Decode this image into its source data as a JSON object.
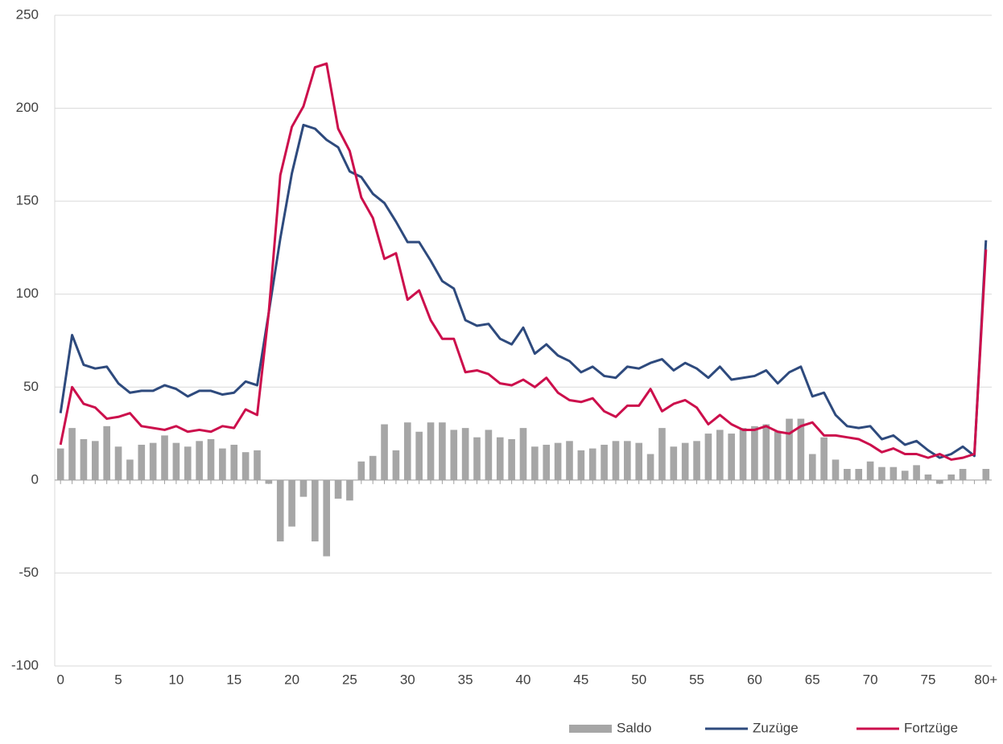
{
  "chart_data": {
    "type": "bar-line",
    "categories": [
      "0",
      null,
      null,
      null,
      null,
      "5",
      null,
      null,
      null,
      null,
      "10",
      null,
      null,
      null,
      null,
      "15",
      null,
      null,
      null,
      null,
      "20",
      null,
      null,
      null,
      null,
      "25",
      null,
      null,
      null,
      null,
      "30",
      null,
      null,
      null,
      null,
      "35",
      null,
      null,
      null,
      null,
      "40",
      null,
      null,
      null,
      null,
      "45",
      null,
      null,
      null,
      null,
      "50",
      null,
      null,
      null,
      null,
      "55",
      null,
      null,
      null,
      null,
      "60",
      null,
      null,
      null,
      null,
      "65",
      null,
      null,
      null,
      null,
      "70",
      null,
      null,
      null,
      null,
      "75",
      null,
      null,
      null,
      null,
      "80+"
    ],
    "series": [
      {
        "name": "Saldo",
        "type": "bar",
        "color": "#a6a6a6",
        "values": [
          17,
          28,
          22,
          21,
          29,
          18,
          11,
          19,
          20,
          24,
          20,
          18,
          21,
          22,
          17,
          19,
          15,
          16,
          -2,
          -33,
          -25,
          -9,
          -33,
          -41,
          -10,
          -11,
          10,
          13,
          30,
          16,
          31,
          26,
          31,
          31,
          27,
          28,
          23,
          27,
          23,
          22,
          28,
          18,
          19,
          20,
          21,
          16,
          17,
          19,
          21,
          21,
          20,
          14,
          28,
          18,
          20,
          21,
          25,
          27,
          25,
          28,
          29,
          30,
          26,
          33,
          33,
          14,
          23,
          11,
          6,
          6,
          10,
          7,
          7,
          5,
          8,
          3,
          -2,
          3,
          6,
          0,
          6
        ]
      },
      {
        "name": "Zuzüge",
        "type": "line",
        "color": "#2e4a7d",
        "values": [
          36,
          78,
          62,
          60,
          61,
          52,
          47,
          48,
          48,
          51,
          49,
          45,
          48,
          48,
          46,
          47,
          53,
          51,
          90,
          130,
          165,
          191,
          189,
          183,
          179,
          166,
          163,
          154,
          149,
          139,
          128,
          128,
          118,
          107,
          103,
          86,
          83,
          84,
          76,
          73,
          82,
          68,
          73,
          67,
          64,
          58,
          61,
          56,
          55,
          61,
          60,
          63,
          65,
          59,
          63,
          60,
          55,
          61,
          54,
          55,
          56,
          59,
          52,
          58,
          61,
          45,
          47,
          35,
          29,
          28,
          29,
          22,
          24,
          19,
          21,
          16,
          12,
          14,
          18,
          13,
          129
        ]
      },
      {
        "name": "Fortzüge",
        "type": "line",
        "color": "#cc0f4c",
        "values": [
          19,
          50,
          41,
          39,
          33,
          34,
          36,
          29,
          28,
          27,
          29,
          26,
          27,
          26,
          29,
          28,
          38,
          35,
          90,
          164,
          190,
          201,
          222,
          224,
          189,
          177,
          152,
          141,
          119,
          122,
          97,
          102,
          86,
          76,
          76,
          58,
          59,
          57,
          52,
          51,
          54,
          50,
          55,
          47,
          43,
          42,
          44,
          37,
          34,
          40,
          40,
          49,
          37,
          41,
          43,
          39,
          30,
          35,
          30,
          27,
          27,
          29,
          26,
          25,
          29,
          31,
          24,
          24,
          23,
          22,
          19,
          15,
          17,
          14,
          14,
          12,
          14,
          11,
          12,
          14,
          124
        ]
      }
    ],
    "ylim": [
      -100,
      250
    ],
    "yticks": [
      -100,
      -50,
      0,
      50,
      100,
      150,
      200,
      250
    ],
    "grid": true,
    "legend": "bottom-right"
  }
}
